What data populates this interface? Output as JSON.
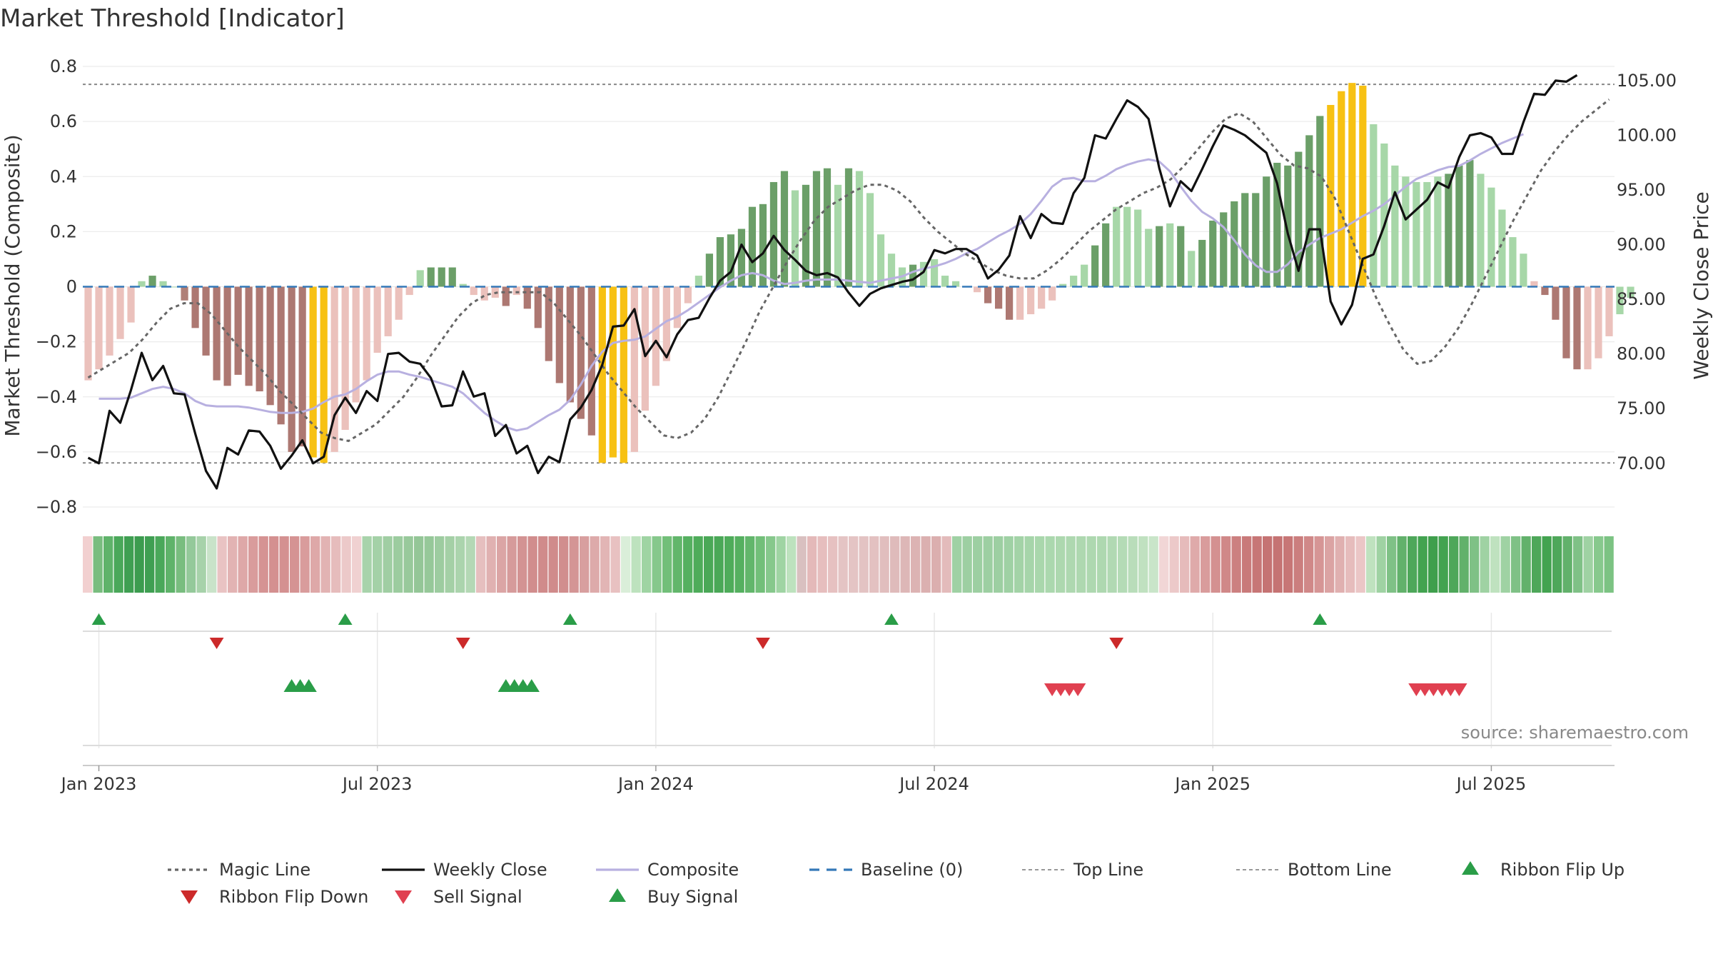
{
  "title": "Market Threshold [Indicator]",
  "source": "source: sharemaestro.com",
  "chart_data": {
    "type": "bar",
    "title": "Market Threshold [Indicator]",
    "ylabel_left": "Market Threshold (Composite)",
    "ylabel_right": "Weekly Close Price",
    "ylim_left": [
      -0.8,
      0.8
    ],
    "yticks_left": [
      "0.8",
      "0.6",
      "0.4",
      "0.2",
      "0",
      "−0.2",
      "−0.4",
      "−0.6",
      "−0.8"
    ],
    "ylim_right": [
      66.0,
      106.3
    ],
    "yticks_right": [
      "105.00",
      "100.00",
      "95.00",
      "90.00",
      "85.00",
      "80.00",
      "75.00",
      "70.00"
    ],
    "x_tick_labels": [
      "Jan 2023",
      "Jul 2023",
      "Jan 2024",
      "Jul 2024",
      "Jan 2025",
      "Jul 2025"
    ],
    "x_start_week": -1,
    "week_count": 143,
    "top_line": 0.735,
    "bottom_line": -0.64,
    "baseline": 0,
    "composite_bars": [
      -0.34,
      -0.3,
      -0.25,
      -0.19,
      -0.13,
      0.02,
      0.04,
      0.02,
      0.0,
      -0.05,
      -0.15,
      -0.25,
      -0.34,
      -0.36,
      -0.32,
      -0.36,
      -0.38,
      -0.43,
      -0.5,
      -0.6,
      -0.58,
      -0.62,
      -0.64,
      -0.6,
      -0.52,
      -0.42,
      -0.34,
      -0.24,
      -0.18,
      -0.12,
      -0.03,
      0.06,
      0.07,
      0.07,
      0.07,
      0.01,
      -0.03,
      -0.05,
      -0.04,
      -0.07,
      -0.03,
      -0.08,
      -0.15,
      -0.27,
      -0.35,
      -0.42,
      -0.48,
      -0.54,
      -0.64,
      -0.62,
      -0.64,
      -0.6,
      -0.45,
      -0.36,
      -0.27,
      -0.15,
      -0.06,
      0.04,
      0.12,
      0.18,
      0.19,
      0.21,
      0.29,
      0.3,
      0.38,
      0.42,
      0.35,
      0.37,
      0.42,
      0.43,
      0.37,
      0.43,
      0.42,
      0.34,
      0.19,
      0.12,
      0.07,
      0.08,
      0.09,
      0.1,
      0.04,
      0.02,
      0.0,
      -0.02,
      -0.06,
      -0.08,
      -0.12,
      -0.12,
      -0.1,
      -0.08,
      -0.05,
      0.01,
      0.04,
      0.08,
      0.15,
      0.23,
      0.29,
      0.29,
      0.28,
      0.21,
      0.22,
      0.23,
      0.22,
      0.13,
      0.17,
      0.24,
      0.27,
      0.31,
      0.34,
      0.34,
      0.4,
      0.45,
      0.44,
      0.49,
      0.55,
      0.62,
      0.66,
      0.71,
      0.74,
      0.73,
      0.59,
      0.52,
      0.44,
      0.4,
      0.38,
      0.38,
      0.4,
      0.41,
      0.44,
      0.46,
      0.41,
      0.36,
      0.28,
      0.18,
      0.12,
      0.02,
      -0.03,
      -0.12,
      -0.26,
      -0.3,
      -0.3,
      -0.26,
      -0.18,
      -0.1,
      -0.04
    ],
    "bar_colors": [
      "#ebc1bc",
      "#ebc1bc",
      "#ebc1bc",
      "#ebc1bc",
      "#ebc1bc",
      "#a7d7a8",
      "#6b9f68",
      "#a7d7a8",
      "#a7d7a8",
      "#b08078",
      "#ad7872",
      "#ad7872",
      "#ad7872",
      "#ad7872",
      "#ad7872",
      "#ad7872",
      "#ad7872",
      "#ad7872",
      "#ad7872",
      "#ad7872",
      "#ad7872",
      "#f7c113",
      "#f7c113",
      "#ebc1bc",
      "#ebc1bc",
      "#ebc1bc",
      "#ebc1bc",
      "#ebc1bc",
      "#ebc1bc",
      "#ebc1bc",
      "#ebc1bc",
      "#a7d7a8",
      "#6b9f68",
      "#6b9f68",
      "#6b9f68",
      "#a7d7a8",
      "#ebc1bc",
      "#ebc1bc",
      "#ebc1bc",
      "#ad7872",
      "#ebc1bc",
      "#ad7872",
      "#ad7872",
      "#ad7872",
      "#ad7872",
      "#ad7872",
      "#ad7872",
      "#ad7872",
      "#f7c113",
      "#f7c113",
      "#f7c113",
      "#ebc1bc",
      "#ebc1bc",
      "#ebc1bc",
      "#ebc1bc",
      "#ebc1bc",
      "#ebc1bc",
      "#a7d7a8",
      "#6b9f68",
      "#6b9f68",
      "#6b9f68",
      "#6b9f68",
      "#6b9f68",
      "#6b9f68",
      "#6b9f68",
      "#6b9f68",
      "#a7d7a8",
      "#6b9f68",
      "#6b9f68",
      "#6b9f68",
      "#a7d7a8",
      "#6b9f68",
      "#a7d7a8",
      "#a7d7a8",
      "#a7d7a8",
      "#a7d7a8",
      "#a7d7a8",
      "#6b9f68",
      "#a7d7a8",
      "#a7d7a8",
      "#a7d7a8",
      "#a7d7a8",
      "#a7d7a8",
      "#ebc1bc",
      "#ad7872",
      "#ad7872",
      "#ad7872",
      "#ebc1bc",
      "#ebc1bc",
      "#ebc1bc",
      "#ebc1bc",
      "#a7d7a8",
      "#a7d7a8",
      "#a7d7a8",
      "#6b9f68",
      "#6b9f68",
      "#a7d7a8",
      "#a7d7a8",
      "#a7d7a8",
      "#a7d7a8",
      "#6b9f68",
      "#a7d7a8",
      "#6b9f68",
      "#a7d7a8",
      "#6b9f68",
      "#6b9f68",
      "#6b9f68",
      "#6b9f68",
      "#6b9f68",
      "#6b9f68",
      "#6b9f68",
      "#6b9f68",
      "#6b9f68",
      "#6b9f68",
      "#6b9f68",
      "#6b9f68",
      "#f7c113",
      "#f7c113",
      "#f7c113",
      "#f7c113",
      "#a7d7a8",
      "#a7d7a8",
      "#a7d7a8",
      "#a7d7a8",
      "#a7d7a8",
      "#a7d7a8",
      "#a7d7a8",
      "#6b9f68",
      "#6b9f68",
      "#6b9f68",
      "#a7d7a8",
      "#a7d7a8",
      "#a7d7a8",
      "#a7d7a8",
      "#a7d7a8",
      "#ebc1bc",
      "#ad7872",
      "#ad7872",
      "#ad7872",
      "#ad7872",
      "#ebc1bc",
      "#ebc1bc",
      "#ebc1bc"
    ],
    "weekly_close": [
      70.5,
      70.0,
      74.8,
      73.7,
      76.7,
      80.1,
      77.6,
      78.9,
      76.4,
      76.3,
      72.7,
      69.3,
      67.7,
      71.4,
      70.8,
      73.0,
      72.9,
      71.6,
      69.5,
      70.7,
      72.1,
      70.0,
      70.6,
      74.4,
      76.0,
      74.6,
      76.6,
      75.7,
      80.0,
      80.1,
      79.3,
      79.1,
      77.8,
      75.2,
      75.3,
      78.4,
      76.1,
      76.4,
      72.5,
      73.5,
      70.9,
      71.6,
      69.1,
      70.6,
      70.1,
      74.0,
      75.1,
      76.7,
      79.0,
      82.5,
      82.6,
      84.1,
      79.8,
      81.2,
      79.7,
      81.8,
      83.1,
      83.3,
      85.1,
      86.7,
      87.5,
      90.0,
      88.4,
      89.2,
      90.8,
      89.5,
      88.6,
      87.6,
      87.2,
      87.4,
      87.0,
      85.6,
      84.4,
      85.5,
      86.0,
      86.3,
      86.6,
      86.8,
      87.5,
      89.5,
      89.2,
      89.6,
      89.6,
      89.0,
      86.9,
      87.7,
      89.0,
      92.6,
      90.6,
      92.8,
      92.0,
      91.9,
      94.7,
      96.1,
      100.0,
      99.7,
      101.5,
      103.2,
      102.6,
      101.5,
      97.0,
      93.5,
      95.8,
      94.9,
      96.9,
      99.0,
      100.9,
      100.5,
      100.0,
      99.2,
      98.4,
      95.6,
      91.0,
      87.6,
      91.4,
      91.4,
      84.8,
      82.7,
      84.5,
      88.7,
      89.1,
      91.7,
      94.8,
      92.3,
      93.2,
      94.1,
      95.7,
      95.2,
      98.0,
      100.0,
      100.2,
      99.8,
      98.3,
      98.3,
      101.2,
      103.8,
      103.7,
      105.0,
      104.9,
      105.5
    ],
    "magic_line": [
      -0.33,
      -0.3,
      -0.27,
      -0.24,
      -0.19,
      -0.13,
      -0.08,
      -0.06,
      -0.06,
      -0.1,
      -0.16,
      -0.22,
      -0.27,
      -0.32,
      -0.38,
      -0.43,
      -0.48,
      -0.53,
      -0.55,
      -0.56,
      -0.53,
      -0.5,
      -0.45,
      -0.4,
      -0.33,
      -0.25,
      -0.18,
      -0.11,
      -0.06,
      -0.03,
      -0.02,
      -0.02,
      -0.02,
      -0.02,
      -0.06,
      -0.12,
      -0.18,
      -0.25,
      -0.32,
      -0.38,
      -0.44,
      -0.49,
      -0.54,
      -0.55,
      -0.53,
      -0.48,
      -0.4,
      -0.3,
      -0.2,
      -0.09,
      -0.0,
      0.09,
      0.17,
      0.24,
      0.29,
      0.32,
      0.35,
      0.37,
      0.37,
      0.35,
      0.31,
      0.25,
      0.2,
      0.16,
      0.12,
      0.09,
      0.06,
      0.04,
      0.03,
      0.03,
      0.06,
      0.1,
      0.15,
      0.2,
      0.24,
      0.28,
      0.31,
      0.34,
      0.36,
      0.39,
      0.44,
      0.5,
      0.56,
      0.61,
      0.63,
      0.6,
      0.54,
      0.48,
      0.44,
      0.43,
      0.4,
      0.32,
      0.2,
      0.08,
      -0.04,
      -0.14,
      -0.23,
      -0.28,
      -0.27,
      -0.22,
      -0.15,
      -0.06,
      0.04,
      0.14,
      0.24,
      0.33,
      0.42,
      0.49,
      0.55,
      0.6,
      0.64,
      0.68
    ],
    "magic_line_from": 0,
    "composite_line": [
      75.9,
      75.9,
      75.9,
      76.0,
      76.4,
      76.8,
      77.0,
      76.8,
      76.4,
      75.7,
      75.3,
      75.2,
      75.2,
      75.2,
      75.1,
      74.9,
      74.7,
      74.6,
      74.6,
      74.7,
      75.0,
      75.6,
      76.1,
      76.3,
      76.8,
      77.5,
      78.1,
      78.4,
      78.4,
      78.1,
      77.9,
      77.6,
      77.3,
      77.0,
      76.4,
      75.5,
      74.6,
      73.9,
      73.3,
      73.0,
      73.2,
      73.8,
      74.4,
      74.9,
      75.8,
      77.2,
      78.9,
      80.2,
      81.0,
      81.2,
      81.3,
      81.6,
      82.3,
      83.0,
      83.4,
      84.0,
      84.7,
      85.4,
      86.1,
      86.7,
      87.2,
      87.4,
      87.2,
      86.7,
      86.4,
      86.5,
      86.7,
      86.8,
      86.8,
      86.8,
      86.7,
      86.6,
      86.5,
      86.7,
      86.9,
      87.1,
      87.5,
      87.8,
      88.0,
      88.3,
      88.7,
      89.2,
      89.6,
      90.2,
      90.8,
      91.3,
      91.9,
      92.8,
      94.0,
      95.3,
      96.0,
      96.1,
      95.8,
      95.8,
      96.3,
      96.9,
      97.3,
      97.6,
      97.8,
      97.6,
      96.7,
      95.3,
      94.0,
      93.0,
      92.4,
      91.6,
      90.4,
      89.1,
      88.1,
      87.5,
      87.5,
      88.2,
      89.3,
      90.0,
      90.6,
      91.0,
      91.4,
      92.0,
      92.6,
      93.1,
      93.7,
      94.5,
      95.3,
      96.0,
      96.4,
      96.8,
      97.1,
      97.2,
      97.7,
      98.3,
      98.8,
      99.3,
      99.7,
      100.1
    ],
    "composite_line_from": 1,
    "ribbon_colors": [
      "#f2d0d0",
      "#79bd7f",
      "#5fb36a",
      "#4aa85a",
      "#3f9f52",
      "#3c9c4f",
      "#3f9f52",
      "#4aa85a",
      "#5fb36a",
      "#79bd7f",
      "#94c99a",
      "#a7d2aa",
      "#c9e3c9",
      "#e9c3c3",
      "#e2b3b3",
      "#dea8a8",
      "#d99c9c",
      "#d59393",
      "#d49090",
      "#d49191",
      "#d59393",
      "#d99c9c",
      "#dea8a8",
      "#e2b3b3",
      "#e6bcbc",
      "#ecc9c9",
      "#f0d1d1",
      "#a8d3ab",
      "#a4d1a7",
      "#a0cea3",
      "#9ccc9f",
      "#98c99b",
      "#94c697",
      "#96c899",
      "#9dcca0",
      "#a4d0a6",
      "#abd4ad",
      "#b4d8b5",
      "#e6bfbf",
      "#e0b1b1",
      "#dba5a5",
      "#d69b9b",
      "#d39393",
      "#d18d8d",
      "#d08b8b",
      "#d08b8b",
      "#d18e8e",
      "#d49595",
      "#d89f9f",
      "#ddaaaa",
      "#e2b5b5",
      "#e8c1c1",
      "#daeed9",
      "#bde2be",
      "#9fd4a3",
      "#86c88c",
      "#72bf79",
      "#62b66b",
      "#55b060",
      "#4eac5a",
      "#4aa857",
      "#4aa857",
      "#4eac5a",
      "#55b060",
      "#62b66b",
      "#72bf79",
      "#86c88c",
      "#9fd4a3",
      "#bde2be",
      "#d9c0c0",
      "#e4b9b9",
      "#e6bebe",
      "#e6c1c1",
      "#e4c4c4",
      "#e4c4c4",
      "#e3c3c3",
      "#e3c1c1",
      "#e1bebe",
      "#dfbbbb",
      "#ddb7b7",
      "#dcb3b3",
      "#dbb0b0",
      "#dbafaf",
      "#e3bbbb",
      "#9fd1a4",
      "#9dcfa2",
      "#9dcfa2",
      "#9dcfa2",
      "#9dcfa2",
      "#9fd1a4",
      "#a3d3a7",
      "#a6d5aa",
      "#a9d7ac",
      "#abd8ae",
      "#add8af",
      "#aed8b0",
      "#aed8b0",
      "#aed8b0",
      "#aed8b0",
      "#b1d9b3",
      "#b4dbb6",
      "#b9ddba",
      "#c0e1c0",
      "#c9e5c9",
      "#f1d6d6",
      "#ecc9c9",
      "#e6bbbb",
      "#dfaaaa",
      "#d99c9c",
      "#d49191",
      "#d08888",
      "#cc8080",
      "#c97a7a",
      "#c77676",
      "#c57373",
      "#c57373",
      "#c77676",
      "#cb7e7e",
      "#d08888",
      "#d69595",
      "#dba3a3",
      "#e0b0b0",
      "#e6bcbc",
      "#ebc6c6",
      "#bfe2bf",
      "#9fd2a3",
      "#7fc186",
      "#62b16b",
      "#4ea75a",
      "#43a350",
      "#3f9f4c",
      "#43a350",
      "#4ea75a",
      "#62b16b",
      "#7fc186",
      "#9fd2a3",
      "#bfe2bf",
      "#9fd2a3",
      "#7fc186",
      "#62b16b",
      "#4ea75a",
      "#43a350",
      "#4ea75a",
      "#62b16b",
      "#7fc186",
      "#9fd2a3",
      "#87c98d",
      "#7cc383"
    ],
    "ribbon_flip_up_weeks": [
      0,
      23,
      44,
      74,
      114
    ],
    "ribbon_flip_down_weeks": [
      11,
      34,
      62,
      95
    ],
    "buy_signal_weeks": [
      18,
      18.8,
      19.6,
      38,
      38.8,
      39.6,
      40.4
    ],
    "sell_signal_weeks": [
      89,
      89.8,
      90.6,
      91.4,
      123,
      123.8,
      124.6,
      125.4,
      126.2,
      127
    ],
    "legend": [
      {
        "label": "Magic Line",
        "type": "dotted",
        "color": "#666666"
      },
      {
        "label": "Weekly Close",
        "type": "line",
        "color": "#111111"
      },
      {
        "label": "Composite",
        "type": "line",
        "color": "#b8b0e0"
      },
      {
        "label": "Baseline (0)",
        "type": "dashed",
        "color": "#3478b8"
      },
      {
        "label": "Top Line",
        "type": "dashed-thin",
        "color": "#999999"
      },
      {
        "label": "Bottom Line",
        "type": "dashed-thin",
        "color": "#999999"
      },
      {
        "label": "Ribbon Flip Up",
        "type": "up",
        "color": "#2a9d48"
      },
      {
        "label": "Ribbon Flip Down",
        "type": "down",
        "color": "#cc2a2a"
      },
      {
        "label": "Sell Signal",
        "type": "down",
        "color": "#e04050"
      },
      {
        "label": "Buy Signal",
        "type": "up",
        "color": "#2a9d48"
      }
    ]
  }
}
